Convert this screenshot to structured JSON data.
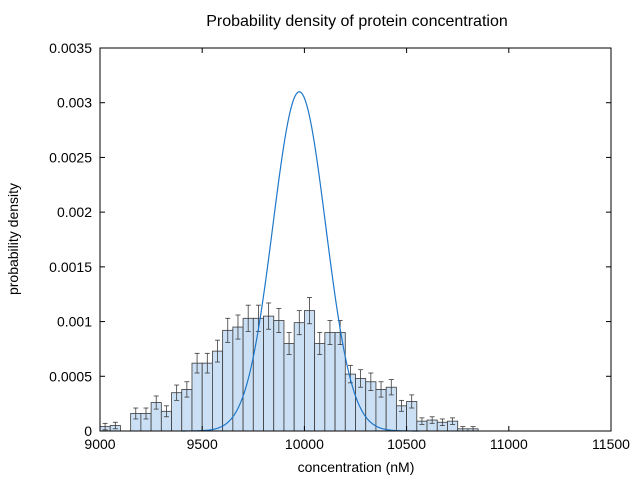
{
  "chart_data": {
    "type": "bar",
    "title": "Probability density of protein concentration",
    "xlabel": "concentration (nM)",
    "ylabel": "probability density",
    "xlim": [
      9000,
      11500
    ],
    "ylim": [
      0,
      0.0035
    ],
    "x_ticks": [
      "9000",
      "9500",
      "10000",
      "10500",
      "11000",
      "11500"
    ],
    "x_tick_values": [
      9000,
      9500,
      10000,
      10500,
      11000,
      11500
    ],
    "y_ticks": [
      "0",
      "0.0005",
      "0.001",
      "0.0015",
      "0.002",
      "0.0025",
      "0.003",
      "0.0035"
    ],
    "y_tick_values": [
      0,
      0.0005,
      0.001,
      0.0015,
      0.002,
      0.0025,
      0.003,
      0.0035
    ],
    "grid": false,
    "bin_width": 50,
    "histogram": {
      "x_start": [
        9000,
        9050,
        9100,
        9150,
        9200,
        9250,
        9300,
        9350,
        9400,
        9450,
        9500,
        9550,
        9600,
        9650,
        9700,
        9750,
        9800,
        9850,
        9900,
        9950,
        10000,
        10050,
        10100,
        10150,
        10200,
        10250,
        10300,
        10350,
        10400,
        10450,
        10500,
        10550,
        10600,
        10650,
        10700,
        10750,
        10800,
        10850,
        10900,
        10950,
        11000
      ],
      "density": [
        4e-05,
        5e-05,
        0,
        0.00016,
        0.00016,
        0.00026,
        0.00018,
        0.00035,
        0.00038,
        0.00062,
        0.00062,
        0.00073,
        0.00092,
        0.00095,
        0.00103,
        0.00103,
        0.00105,
        0.00101,
        0.0008,
        0.00099,
        0.0011,
        0.0008,
        0.0009,
        0.0009,
        0.00052,
        0.00048,
        0.00045,
        0.00038,
        0.0004,
        0.00023,
        0.00027,
        9e-05,
        0.0001,
        8e-05,
        9e-05,
        2e-05,
        2e-05,
        0,
        0,
        0,
        0
      ],
      "error": [
        3e-05,
        3e-05,
        0,
        5e-05,
        5e-05,
        6e-05,
        5e-05,
        7e-05,
        7e-05,
        9e-05,
        9e-05,
        0.0001,
        0.00011,
        0.00011,
        0.00012,
        0.00012,
        0.00012,
        0.00011,
        0.0001,
        0.00011,
        0.00012,
        0.0001,
        0.00011,
        0.00011,
        8e-05,
        8e-05,
        8e-05,
        7e-05,
        7e-05,
        5e-05,
        6e-05,
        3e-05,
        3e-05,
        3e-05,
        3e-05,
        2e-05,
        2e-05,
        0,
        0,
        0,
        0
      ]
    },
    "curve": {
      "type": "line",
      "mean": 9975,
      "sd": 129,
      "peak": 0.0031
    },
    "colors": {
      "bar_fill": "#cce0f5",
      "bar_stroke": "#3a3a3a",
      "error_bar": "#3a3a3a",
      "curve": "#1f77c9",
      "axis": "#000000"
    }
  }
}
